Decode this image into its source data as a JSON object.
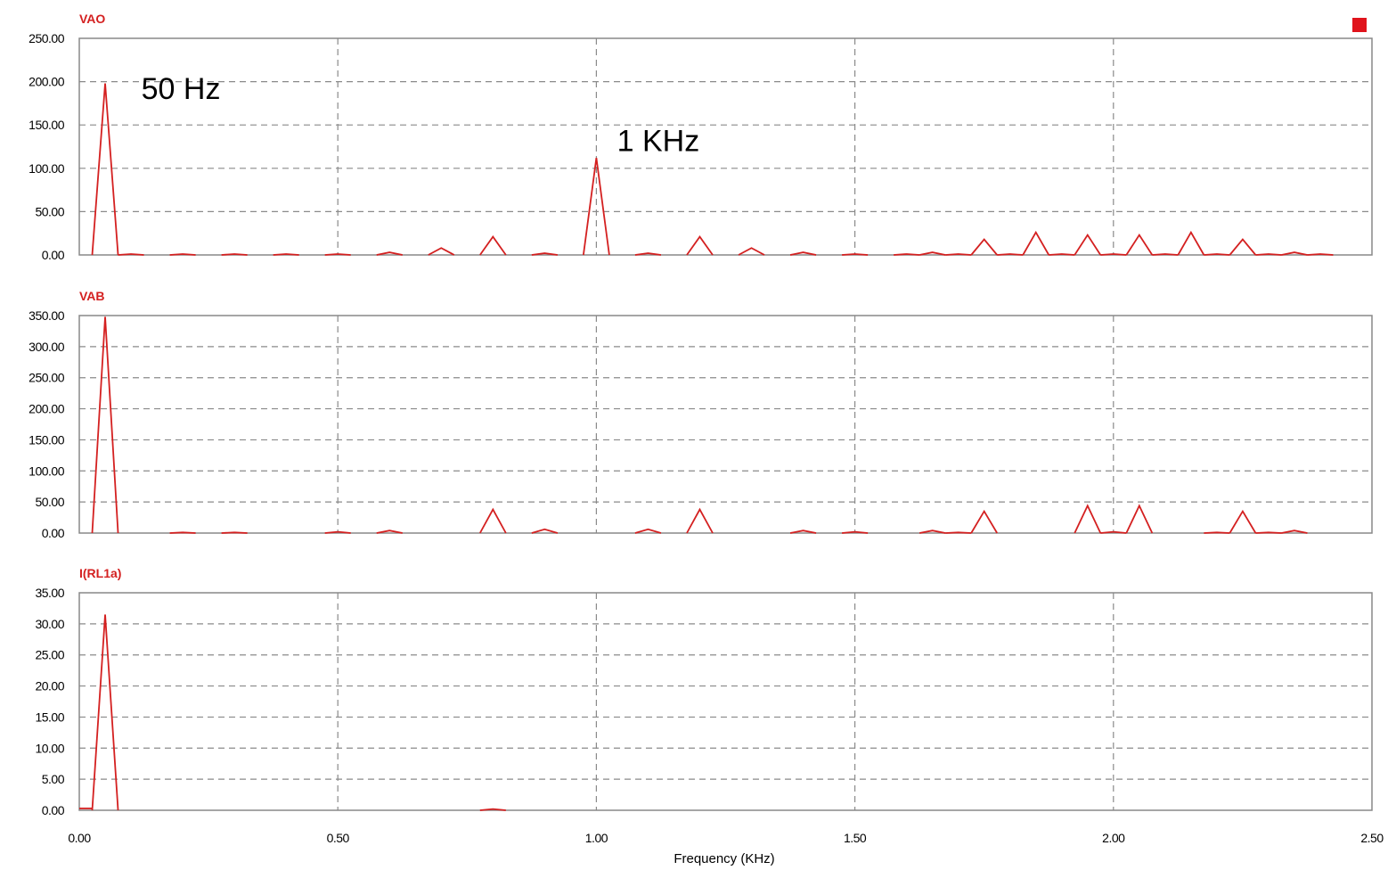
{
  "colors": {
    "trace": "#d42020",
    "grid": "#8a8a8a",
    "marker": "#e0141c"
  },
  "legend_marker": {
    "color": "#e0141c"
  },
  "chart_data": [
    {
      "type": "line",
      "title": "VAO",
      "xlabel": "",
      "ylabel": "",
      "xlim": [
        0,
        2.5
      ],
      "ylim": [
        0,
        250
      ],
      "x_ticks": [
        "0.00",
        "0.50",
        "1.00",
        "1.50",
        "2.00",
        "2.50"
      ],
      "y_ticks": [
        "0.00",
        "50.00",
        "100.00",
        "150.00",
        "200.00",
        "250.00"
      ],
      "grid": true,
      "annotations": [
        {
          "text": "50 Hz",
          "x": 0.12,
          "y": 180
        },
        {
          "text": "1 KHz",
          "x": 1.04,
          "y": 120
        }
      ],
      "peaks": [
        {
          "f": 0.05,
          "amp": 198
        },
        {
          "f": 0.1,
          "amp": 1
        },
        {
          "f": 0.2,
          "amp": 1
        },
        {
          "f": 0.3,
          "amp": 1
        },
        {
          "f": 0.4,
          "amp": 1
        },
        {
          "f": 0.5,
          "amp": 1
        },
        {
          "f": 0.6,
          "amp": 3
        },
        {
          "f": 0.7,
          "amp": 8
        },
        {
          "f": 0.8,
          "amp": 21
        },
        {
          "f": 0.9,
          "amp": 2
        },
        {
          "f": 1.0,
          "amp": 112
        },
        {
          "f": 1.1,
          "amp": 2
        },
        {
          "f": 1.2,
          "amp": 21
        },
        {
          "f": 1.3,
          "amp": 8
        },
        {
          "f": 1.4,
          "amp": 3
        },
        {
          "f": 1.5,
          "amp": 1
        },
        {
          "f": 1.6,
          "amp": 1
        },
        {
          "f": 1.65,
          "amp": 3
        },
        {
          "f": 1.7,
          "amp": 1
        },
        {
          "f": 1.75,
          "amp": 18
        },
        {
          "f": 1.8,
          "amp": 1
        },
        {
          "f": 1.85,
          "amp": 26
        },
        {
          "f": 1.9,
          "amp": 1
        },
        {
          "f": 1.95,
          "amp": 23
        },
        {
          "f": 2.0,
          "amp": 1
        },
        {
          "f": 2.05,
          "amp": 23
        },
        {
          "f": 2.1,
          "amp": 1
        },
        {
          "f": 2.15,
          "amp": 26
        },
        {
          "f": 2.2,
          "amp": 1
        },
        {
          "f": 2.25,
          "amp": 18
        },
        {
          "f": 2.3,
          "amp": 1
        },
        {
          "f": 2.35,
          "amp": 3
        },
        {
          "f": 2.4,
          "amp": 1
        }
      ]
    },
    {
      "type": "line",
      "title": "VAB",
      "xlabel": "",
      "ylabel": "",
      "xlim": [
        0,
        2.5
      ],
      "ylim": [
        0,
        350
      ],
      "x_ticks": [
        "0.00",
        "0.50",
        "1.00",
        "1.50",
        "2.00",
        "2.50"
      ],
      "y_ticks": [
        "0.00",
        "50.00",
        "100.00",
        "150.00",
        "200.00",
        "250.00",
        "300.00",
        "350.00"
      ],
      "grid": true,
      "annotations": [],
      "peaks": [
        {
          "f": 0.05,
          "amp": 348
        },
        {
          "f": 0.2,
          "amp": 1
        },
        {
          "f": 0.3,
          "amp": 1
        },
        {
          "f": 0.5,
          "amp": 2
        },
        {
          "f": 0.6,
          "amp": 4
        },
        {
          "f": 0.8,
          "amp": 38
        },
        {
          "f": 0.9,
          "amp": 6
        },
        {
          "f": 1.1,
          "amp": 6
        },
        {
          "f": 1.2,
          "amp": 38
        },
        {
          "f": 1.4,
          "amp": 4
        },
        {
          "f": 1.5,
          "amp": 2
        },
        {
          "f": 1.65,
          "amp": 4
        },
        {
          "f": 1.7,
          "amp": 1
        },
        {
          "f": 1.75,
          "amp": 35
        },
        {
          "f": 1.95,
          "amp": 44
        },
        {
          "f": 2.0,
          "amp": 2
        },
        {
          "f": 2.05,
          "amp": 44
        },
        {
          "f": 2.2,
          "amp": 1
        },
        {
          "f": 2.25,
          "amp": 35
        },
        {
          "f": 2.3,
          "amp": 1
        },
        {
          "f": 2.35,
          "amp": 4
        }
      ]
    },
    {
      "type": "line",
      "title": "I(RL1a)",
      "xlabel": "Frequency (KHz)",
      "ylabel": "",
      "xlim": [
        0,
        2.5
      ],
      "ylim": [
        0,
        35
      ],
      "x_ticks": [
        "0.00",
        "0.50",
        "1.00",
        "1.50",
        "2.00",
        "2.50"
      ],
      "y_ticks": [
        "0.00",
        "5.00",
        "10.00",
        "15.00",
        "20.00",
        "25.00",
        "30.00",
        "35.00"
      ],
      "grid": true,
      "annotations": [],
      "dc_offset": 0.3,
      "peaks": [
        {
          "f": 0.05,
          "amp": 31.5
        },
        {
          "f": 0.8,
          "amp": 0.2
        }
      ]
    }
  ]
}
